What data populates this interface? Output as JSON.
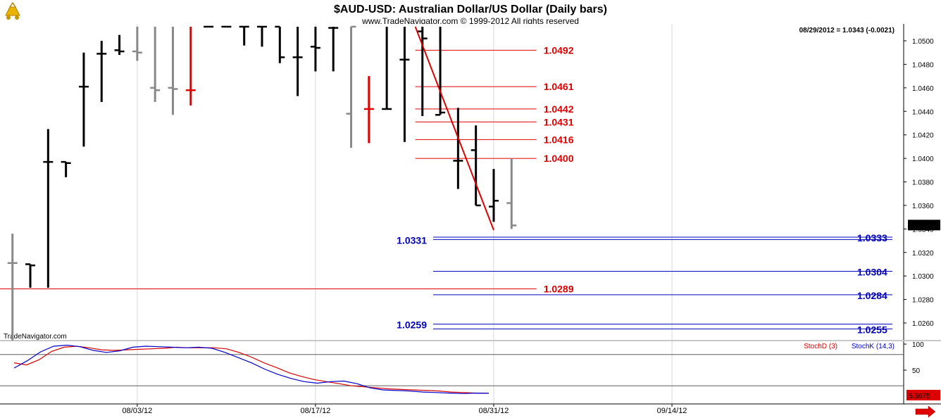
{
  "header": {
    "title": "$AUD-USD:  Australian Dollar/US Dollar  (Daily bars)",
    "copyright": "www.TradeNavigator.com © 1999-2012 All rights reserved",
    "readout": "08/29/2012 = 1.0343 (-0.0021)",
    "watermark": "TradeNavigator.com"
  },
  "colors": {
    "up_bar": "#000000",
    "down_bar": "#888888",
    "highlight_bar": "#e00000",
    "resistance": "#dd0000",
    "support": "#0000bb",
    "stochd": "#dd0000",
    "stochk": "#0000cc"
  },
  "icons": {
    "logo": "trading-cart-logo-icon",
    "scroll": "scroll-right-arrow-icon"
  },
  "chart_data": [
    {
      "type": "ohlc-bar",
      "title": "$AUD-USD:  Australian Dollar/US Dollar  (Daily bars)",
      "ylim": [
        1.0245,
        1.0512
      ],
      "y_ticks": [
        "1.0500",
        "1.0480",
        "1.0460",
        "1.0440",
        "1.0420",
        "1.0400",
        "1.0380",
        "1.0360",
        "1.0340",
        "1.0320",
        "1.0300",
        "1.0280",
        "1.0260"
      ],
      "x_ticks": [
        {
          "index": 7,
          "label": "08/03/12"
        },
        {
          "index": 17,
          "label": "08/17/12"
        },
        {
          "index": 27,
          "label": "08/31/12"
        },
        {
          "index": 37,
          "label": "09/14/12"
        }
      ],
      "x_range": [
        -0.7,
        50
      ],
      "last_price_label": "1.0343",
      "bars": [
        {
          "o": 1.0311,
          "h": 1.0336,
          "l": 1.0245,
          "c": 1.0311,
          "color": "down"
        },
        {
          "o": 1.031,
          "h": 1.031,
          "l": 1.029,
          "c": 1.0309,
          "color": "up"
        },
        {
          "o": 1.0397,
          "h": 1.0425,
          "l": 1.029,
          "c": 1.0397,
          "color": "up"
        },
        {
          "o": 1.0397,
          "h": 1.0397,
          "l": 1.0384,
          "c": 1.0396,
          "color": "up"
        },
        {
          "o": 1.0461,
          "h": 1.049,
          "l": 1.041,
          "c": 1.0461,
          "color": "up"
        },
        {
          "o": 1.0489,
          "h": 1.05,
          "l": 1.0448,
          "c": 1.0489,
          "color": "up"
        },
        {
          "o": 1.0492,
          "h": 1.0505,
          "l": 1.0488,
          "c": 1.0491,
          "color": "up"
        },
        {
          "o": 1.0491,
          "h": 1.0512,
          "l": 1.0483,
          "c": 1.049,
          "color": "down"
        },
        {
          "o": 1.046,
          "h": 1.0512,
          "l": 1.0448,
          "c": 1.0458,
          "color": "down"
        },
        {
          "o": 1.046,
          "h": 1.0512,
          "l": 1.0437,
          "c": 1.0459,
          "color": "down"
        },
        {
          "o": 1.0458,
          "h": 1.0512,
          "l": 1.0445,
          "c": 1.0458,
          "color": "highlight"
        },
        {
          "o": 1.0512,
          "h": 1.0512,
          "l": 1.0512,
          "c": 1.0512,
          "color": "up"
        },
        {
          "o": 1.0512,
          "h": 1.0512,
          "l": 1.0512,
          "c": 1.0512,
          "color": "up"
        },
        {
          "o": 1.0512,
          "h": 1.0512,
          "l": 1.0496,
          "c": 1.0512,
          "color": "up"
        },
        {
          "o": 1.0512,
          "h": 1.0512,
          "l": 1.0495,
          "c": 1.0512,
          "color": "up"
        },
        {
          "o": 1.0512,
          "h": 1.0512,
          "l": 1.0481,
          "c": 1.0486,
          "color": "up"
        },
        {
          "o": 1.0486,
          "h": 1.0512,
          "l": 1.0453,
          "c": 1.0486,
          "color": "up"
        },
        {
          "o": 1.0495,
          "h": 1.0512,
          "l": 1.0474,
          "c": 1.0494,
          "color": "up"
        },
        {
          "o": 1.0511,
          "h": 1.0512,
          "l": 1.0474,
          "c": 1.0511,
          "color": "up"
        },
        {
          "o": 1.0438,
          "h": 1.0512,
          "l": 1.0409,
          "c": 1.0512,
          "color": "down"
        },
        {
          "o": 1.0442,
          "h": 1.047,
          "l": 1.0413,
          "c": 1.0442,
          "color": "highlight"
        },
        {
          "o": 1.0442,
          "h": 1.0512,
          "l": 1.0442,
          "c": 1.0442,
          "color": "up"
        },
        {
          "o": 1.0484,
          "h": 1.0512,
          "l": 1.0414,
          "c": 1.0484,
          "color": "up"
        },
        {
          "o": 1.0508,
          "h": 1.0512,
          "l": 1.0436,
          "c": 1.0502,
          "color": "up"
        },
        {
          "o": 1.0437,
          "h": 1.0512,
          "l": 1.0437,
          "c": 1.0439,
          "color": "up"
        },
        {
          "o": 1.0398,
          "h": 1.0443,
          "l": 1.0374,
          "c": 1.0398,
          "color": "up"
        },
        {
          "o": 1.0407,
          "h": 1.0428,
          "l": 1.036,
          "c": 1.036,
          "color": "up"
        },
        {
          "o": 1.0359,
          "h": 1.0391,
          "l": 1.0346,
          "c": 1.0364,
          "color": "up"
        },
        {
          "o": 1.0362,
          "h": 1.04,
          "l": 1.034,
          "c": 1.0343,
          "color": "down"
        }
      ],
      "trendline": {
        "from": {
          "index": 22.6,
          "price": 1.0512
        },
        "to": {
          "index": 27,
          "price": 1.0339
        }
      },
      "resistance_levels": [
        {
          "value": 1.0492,
          "label": "1.0492",
          "from": 22.6,
          "to": 29.4
        },
        {
          "value": 1.0461,
          "label": "1.0461",
          "from": 22.6,
          "to": 29.4
        },
        {
          "value": 1.0442,
          "label": "1.0442",
          "from": 22.6,
          "to": 29.4
        },
        {
          "value": 1.0431,
          "label": "1.0431",
          "from": 22.6,
          "to": 29.4
        },
        {
          "value": 1.0416,
          "label": "1.0416",
          "from": 22.6,
          "to": 29.4
        },
        {
          "value": 1.04,
          "label": "1.0400",
          "from": 22.6,
          "to": 29.4
        },
        {
          "value": 1.0289,
          "label": "1.0289",
          "from": -0.7,
          "to": 29.4
        }
      ],
      "support_levels": [
        {
          "value": 1.0333,
          "label": "1.0333",
          "from": 23.6,
          "to": 50,
          "double": true,
          "label_side": "right"
        },
        {
          "value": 1.0331,
          "label": "1.0331",
          "from": 23.6,
          "to": 50,
          "label_side": "left"
        },
        {
          "value": 1.0304,
          "label": "1.0304",
          "from": 23.6,
          "to": 50,
          "label_side": "right"
        },
        {
          "value": 1.0284,
          "label": "1.0284",
          "from": 23.6,
          "to": 50,
          "label_side": "right"
        },
        {
          "value": 1.0259,
          "label": "1.0259",
          "from": 23.6,
          "to": 50,
          "label_side": "left"
        },
        {
          "value": 1.0255,
          "label": "1.0255",
          "from": 23.6,
          "to": 50,
          "label_side": "right"
        }
      ]
    },
    {
      "type": "line",
      "title": "",
      "ylim": [
        -8,
        105
      ],
      "y_ticks": [
        "100",
        "50"
      ],
      "reference_lines": [
        80,
        20
      ],
      "last_value_label": "5.5675",
      "series": [
        {
          "name": "StochD (3)",
          "color": "stochd",
          "values": [
            64,
            60,
            70,
            86,
            94,
            96,
            93,
            89,
            88,
            89,
            90,
            91,
            92,
            94,
            93,
            93,
            93,
            91,
            84,
            75,
            64,
            55,
            45,
            38,
            32,
            28,
            24,
            20,
            18,
            16,
            14,
            13,
            12,
            11,
            10,
            8,
            7,
            6,
            5.57
          ]
        },
        {
          "name": "StochK (14,3)",
          "color": "stochk",
          "values": [
            54,
            68,
            85,
            96,
            98,
            95,
            88,
            84,
            87,
            94,
            96,
            95,
            94,
            93,
            94,
            92,
            84,
            74,
            64,
            52,
            42,
            34,
            28,
            25,
            28,
            29,
            24,
            16,
            12,
            11,
            10,
            8,
            7,
            6,
            5,
            6,
            5.57
          ]
        }
      ]
    }
  ]
}
